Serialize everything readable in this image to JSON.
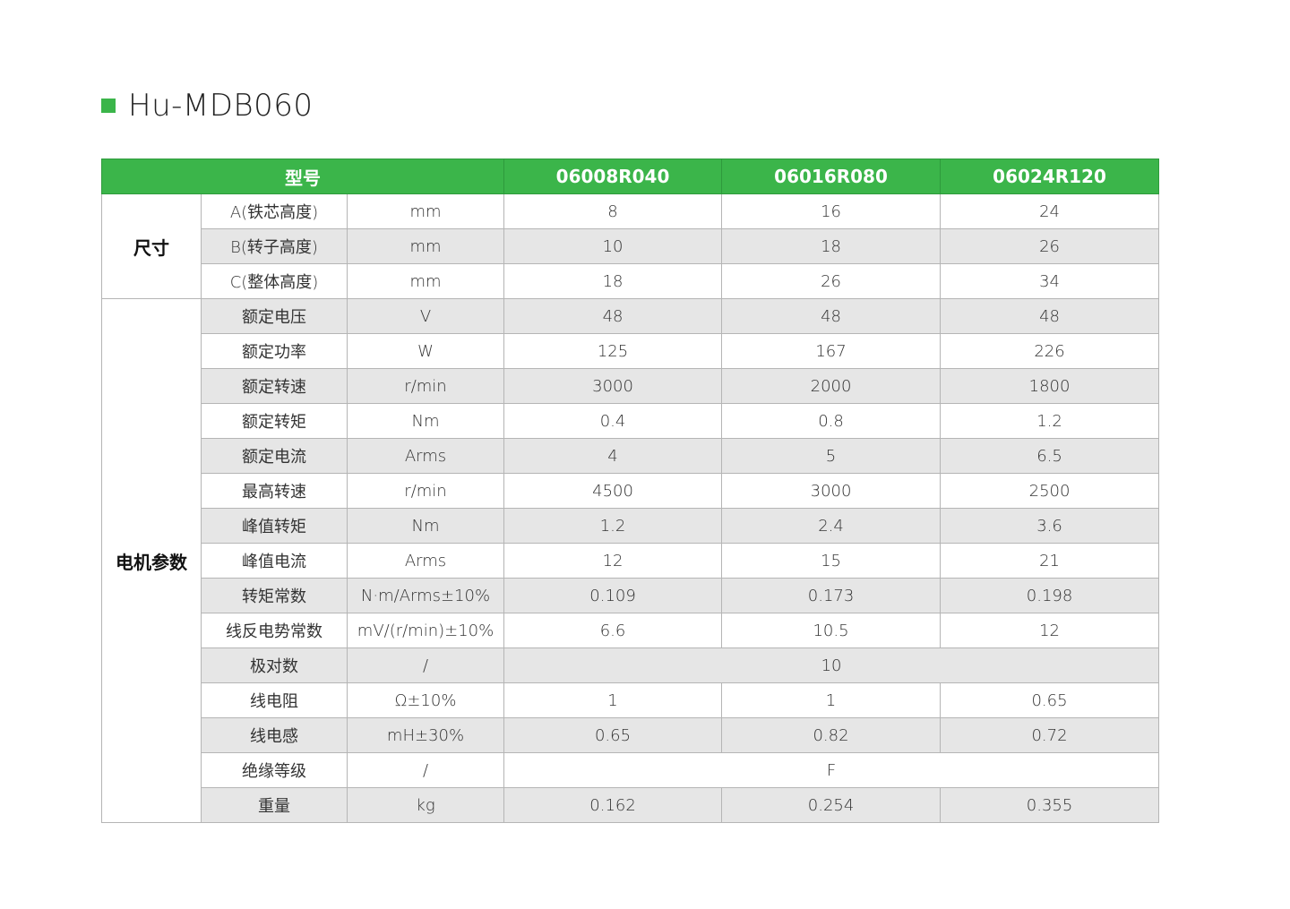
{
  "title": "Hu-MDB060",
  "accent_color": "#3bb54a",
  "header": {
    "model_label": "型号",
    "models": [
      "06008R040",
      "06016R080",
      "06024R120"
    ]
  },
  "groups": [
    {
      "label": "尺寸",
      "rows": [
        {
          "name": "A(铁芯高度)",
          "unit": "mm",
          "values": [
            "8",
            "16",
            "24"
          ]
        },
        {
          "name": "B(转子高度)",
          "unit": "mm",
          "values": [
            "10",
            "18",
            "26"
          ]
        },
        {
          "name": "C(整体高度)",
          "unit": "mm",
          "values": [
            "18",
            "26",
            "34"
          ]
        }
      ]
    },
    {
      "label": "电机参数",
      "rows": [
        {
          "name": "额定电压",
          "unit": "V",
          "values": [
            "48",
            "48",
            "48"
          ]
        },
        {
          "name": "额定功率",
          "unit": "W",
          "values": [
            "125",
            "167",
            "226"
          ]
        },
        {
          "name": "额定转速",
          "unit": "r/min",
          "values": [
            "3000",
            "2000",
            "1800"
          ]
        },
        {
          "name": "额定转矩",
          "unit": "Nm",
          "values": [
            "0.4",
            "0.8",
            "1.2"
          ]
        },
        {
          "name": "额定电流",
          "unit": "Arms",
          "values": [
            "4",
            "5",
            "6.5"
          ]
        },
        {
          "name": "最高转速",
          "unit": "r/min",
          "values": [
            "4500",
            "3000",
            "2500"
          ]
        },
        {
          "name": "峰值转矩",
          "unit": "Nm",
          "values": [
            "1.2",
            "2.4",
            "3.6"
          ]
        },
        {
          "name": "峰值电流",
          "unit": "Arms",
          "values": [
            "12",
            "15",
            "21"
          ]
        },
        {
          "name": "转矩常数",
          "unit": "N·m/Arms±10%",
          "values": [
            "0.109",
            "0.173",
            "0.198"
          ]
        },
        {
          "name": "线反电势常数",
          "unit": "mV/(r/min)±10%",
          "values": [
            "6.6",
            "10.5",
            "12"
          ]
        },
        {
          "name": "极对数",
          "unit": "/",
          "values": [
            "10"
          ]
        },
        {
          "name": "线电阻",
          "unit": "Ω±10%",
          "values": [
            "1",
            "1",
            "0.65"
          ]
        },
        {
          "name": "线电感",
          "unit": "mH±30%",
          "values": [
            "0.65",
            "0.82",
            "0.72"
          ]
        },
        {
          "name": "绝缘等级",
          "unit": "/",
          "values": [
            "F"
          ]
        },
        {
          "name": "重量",
          "unit": "kg",
          "values": [
            "0.162",
            "0.254",
            "0.355"
          ]
        }
      ]
    }
  ]
}
